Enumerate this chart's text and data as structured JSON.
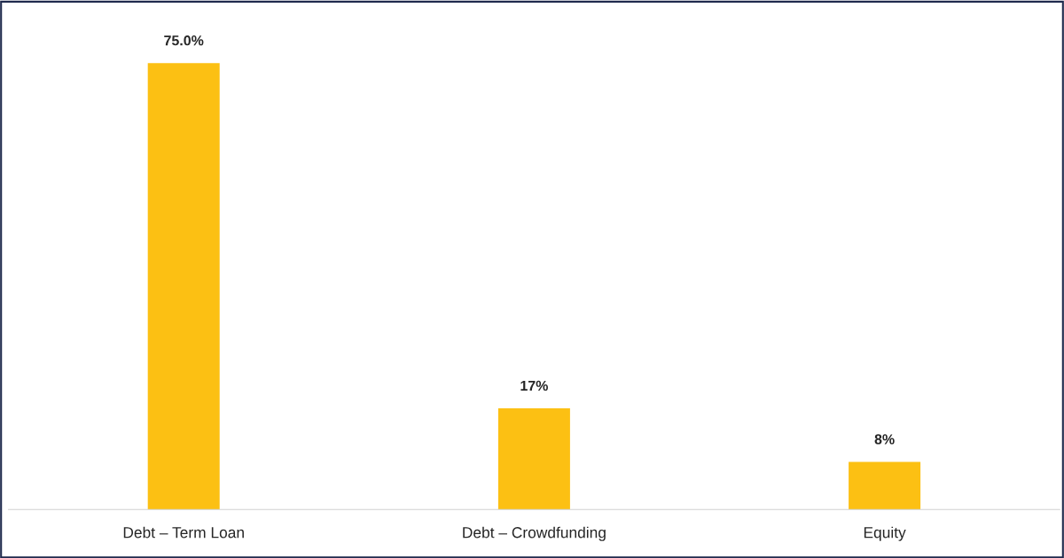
{
  "chart_data": {
    "type": "bar",
    "categories": [
      "Debt – Term Loan",
      "Debt – Crowdfunding",
      "Equity"
    ],
    "values": [
      75.0,
      17,
      8
    ],
    "color": "#fcc013",
    "value_labels": [
      "75.0%",
      "17%",
      "8%"
    ],
    "grid": false,
    "legend": false
  }
}
